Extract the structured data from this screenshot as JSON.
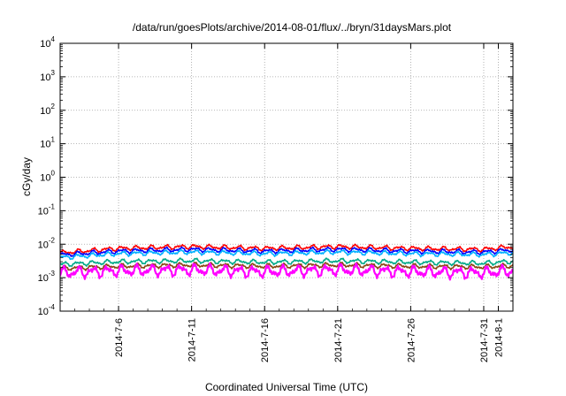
{
  "chart_data": {
    "type": "line",
    "title": "/data/run/goesPlots/archive/2014-08-01/flux/../bryn/31daysMars.plot",
    "xlabel": "Coordinated Universal Time (UTC)",
    "ylabel": "cGy/day",
    "yscale": "log",
    "ylim": [
      0.0001,
      10000
    ],
    "y_ticks": [
      {
        "base": "10",
        "exp": "-4"
      },
      {
        "base": "10",
        "exp": "-3"
      },
      {
        "base": "10",
        "exp": "-2"
      },
      {
        "base": "10",
        "exp": "-1"
      },
      {
        "base": "10",
        "exp": "0"
      },
      {
        "base": "10",
        "exp": "1"
      },
      {
        "base": "10",
        "exp": "2"
      },
      {
        "base": "10",
        "exp": "3"
      },
      {
        "base": "10",
        "exp": "4"
      }
    ],
    "xlim": [
      "2014-07-02",
      "2014-08-02"
    ],
    "x_ticks": [
      "2014-7-6",
      "2014-7-11",
      "2014-7-16",
      "2014-7-21",
      "2014-7-26",
      "2014-7-31",
      "2014-8-1"
    ],
    "grid": true,
    "legend": "none",
    "series_colors": [
      "#ff0000",
      "#0000ff",
      "#00b0ff",
      "#00aa88",
      "#8b4513",
      "#ff00ff"
    ],
    "series": [
      {
        "color": "#ff0000",
        "x": [
          "2014-07-02",
          "2014-07-06",
          "2014-07-11",
          "2014-07-16",
          "2014-07-21",
          "2014-07-26",
          "2014-07-31",
          "2014-08-02"
        ],
        "values": [
          0.0055,
          0.0075,
          0.0085,
          0.0075,
          0.0085,
          0.0075,
          0.007,
          0.0085
        ]
      },
      {
        "color": "#0000ff",
        "x": [
          "2014-07-02",
          "2014-07-06",
          "2014-07-11",
          "2014-07-16",
          "2014-07-21",
          "2014-07-26",
          "2014-07-31",
          "2014-08-02"
        ],
        "values": [
          0.0048,
          0.0062,
          0.007,
          0.0062,
          0.007,
          0.0062,
          0.0058,
          0.0068
        ]
      },
      {
        "color": "#00b0ff",
        "x": [
          "2014-07-02",
          "2014-07-06",
          "2014-07-11",
          "2014-07-16",
          "2014-07-21",
          "2014-07-26",
          "2014-07-31",
          "2014-08-02"
        ],
        "values": [
          0.004,
          0.0052,
          0.0058,
          0.0052,
          0.0058,
          0.0052,
          0.0049,
          0.0056
        ]
      },
      {
        "color": "#00aa88",
        "x": [
          "2014-07-02",
          "2014-07-06",
          "2014-07-11",
          "2014-07-16",
          "2014-07-21",
          "2014-07-26",
          "2014-07-31",
          "2014-08-02"
        ],
        "values": [
          0.0025,
          0.003,
          0.0032,
          0.0029,
          0.0032,
          0.0029,
          0.0027,
          0.0031
        ]
      },
      {
        "color": "#8b4513",
        "x": [
          "2014-07-02",
          "2014-07-06",
          "2014-07-11",
          "2014-07-16",
          "2014-07-21",
          "2014-07-26",
          "2014-07-31",
          "2014-08-02"
        ],
        "values": [
          0.0019,
          0.0022,
          0.0024,
          0.0022,
          0.0024,
          0.0022,
          0.0021,
          0.0023
        ]
      },
      {
        "color": "#ff00ff",
        "x": [
          "2014-07-02",
          "2014-07-06",
          "2014-07-11",
          "2014-07-16",
          "2014-07-21",
          "2014-07-26",
          "2014-07-31",
          "2014-08-02"
        ],
        "values": [
          0.0014,
          0.0016,
          0.0017,
          0.0015,
          0.0017,
          0.0015,
          0.0014,
          0.0016
        ]
      }
    ]
  }
}
